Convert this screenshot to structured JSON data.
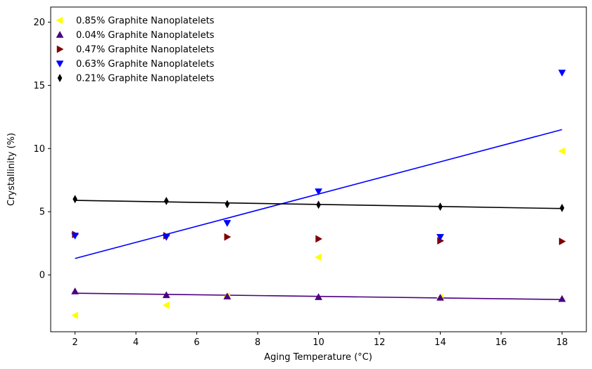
{
  "chart_data": {
    "type": "scatter",
    "title": "",
    "xlabel": "Aging Temperature (°C)",
    "ylabel": "Crystallinity (%)",
    "xlim": [
      1.2,
      18.8
    ],
    "ylim": [
      -4.5,
      21.2
    ],
    "xticks": [
      2,
      4,
      6,
      8,
      10,
      12,
      14,
      16,
      18
    ],
    "yticks": [
      0,
      5,
      10,
      15,
      20
    ],
    "grid": false,
    "legend_position": "top-left",
    "series": [
      {
        "name": "0.85% Graphite Nanoplatelets",
        "marker": "triangle-left",
        "color": "#ffff00",
        "x": [
          2,
          5,
          7,
          10,
          14,
          18
        ],
        "y": [
          -3.2,
          -2.4,
          -1.7,
          1.4,
          -1.8,
          9.8
        ]
      },
      {
        "name": "0.04% Graphite Nanoplatelets",
        "marker": "triangle-up",
        "color": "#4b0082",
        "x": [
          2,
          5,
          7,
          10,
          14,
          18
        ],
        "y": [
          -1.3,
          -1.6,
          -1.7,
          -1.75,
          -1.8,
          -1.9
        ],
        "fit": [
          [
            2,
            -1.45
          ],
          [
            18,
            -1.95
          ]
        ]
      },
      {
        "name": "0.47% Graphite Nanoplatelets",
        "marker": "triangle-right",
        "color": "#800000",
        "x": [
          2,
          5,
          7,
          10,
          14,
          18
        ],
        "y": [
          3.2,
          3.1,
          3.0,
          2.85,
          2.7,
          2.65
        ]
      },
      {
        "name": "0.63% Graphite Nanoplatelets",
        "marker": "triangle-down",
        "color": "#0000ff",
        "x": [
          2,
          5,
          7,
          10,
          14,
          18
        ],
        "y": [
          3.1,
          3.0,
          4.1,
          6.6,
          3.0,
          16.0
        ],
        "fit": [
          [
            2,
            1.3
          ],
          [
            18,
            11.5
          ]
        ]
      },
      {
        "name": "0.21% Graphite Nanoplatelets",
        "marker": "thin-diamond",
        "color": "#000000",
        "x": [
          2,
          5,
          7,
          10,
          14,
          18
        ],
        "y": [
          6.0,
          5.85,
          5.6,
          5.55,
          5.4,
          5.3
        ],
        "fit": [
          [
            2,
            5.9
          ],
          [
            18,
            5.25
          ]
        ]
      }
    ]
  }
}
